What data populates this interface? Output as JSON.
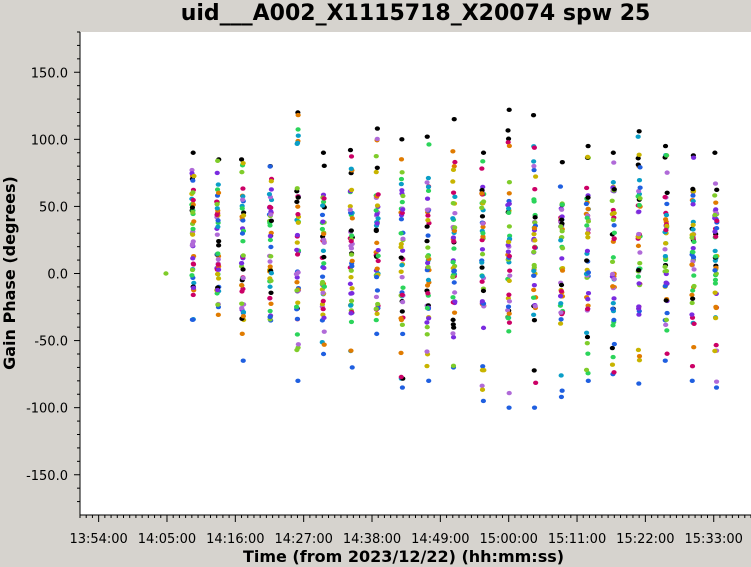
{
  "chart_data": {
    "type": "scatter",
    "title": "uid___A002_X1115718_X20074 spw 25",
    "xlabel": "Time (from 2023/12/22) (hh:mm:ss)",
    "ylabel": "Gain Phase (degrees)",
    "xlim": [
      "13:51:00",
      "15:39:00"
    ],
    "ylim": [
      -180,
      180
    ],
    "y_ticks": [
      "150.0",
      "100.0",
      "50.0",
      "0.0",
      "-50.0",
      "-100.0",
      "-150.0"
    ],
    "x_ticks": [
      "13:54:00",
      "14:05:00",
      "14:16:00",
      "14:27:00",
      "14:38:00",
      "14:49:00",
      "15:00:00",
      "15:11:00",
      "15:22:00",
      "15:33:00"
    ],
    "grid": false,
    "legend": "none",
    "reference_point": {
      "time": "14:04:50",
      "phase": 0,
      "color": "#7fcc2a"
    },
    "antenna_colors": [
      "#000000",
      "#1f5fe0",
      "#cc0066",
      "#e07b00",
      "#2bd45a",
      "#7a2be0",
      "#b06ad8",
      "#7fcc2a",
      "#0a9ec7",
      "#c8b400"
    ],
    "scan_times": [
      "14:09:10",
      "14:13:10",
      "14:17:10",
      "14:21:40",
      "14:26:00",
      "14:30:10",
      "14:34:40",
      "14:38:50",
      "14:42:50",
      "14:47:00",
      "14:51:10",
      "14:55:50",
      "15:00:00",
      "15:04:10",
      "15:08:30",
      "15:12:40",
      "15:16:50",
      "15:21:00",
      "15:25:20",
      "15:29:40",
      "15:33:20"
    ],
    "scan_phase_ranges": [
      [
        -10,
        90
      ],
      [
        -25,
        85
      ],
      [
        -65,
        85
      ],
      [
        -35,
        80
      ],
      [
        -80,
        120
      ],
      [
        -60,
        90
      ],
      [
        -70,
        92
      ],
      [
        -45,
        108
      ],
      [
        -85,
        100
      ],
      [
        -80,
        102
      ],
      [
        -70,
        115
      ],
      [
        -95,
        90
      ],
      [
        -100,
        122
      ],
      [
        -100,
        118
      ],
      [
        -92,
        83
      ],
      [
        -80,
        95
      ],
      [
        -75,
        90
      ],
      [
        -82,
        106
      ],
      [
        -65,
        95
      ],
      [
        -80,
        88
      ],
      [
        -85,
        90
      ]
    ]
  }
}
